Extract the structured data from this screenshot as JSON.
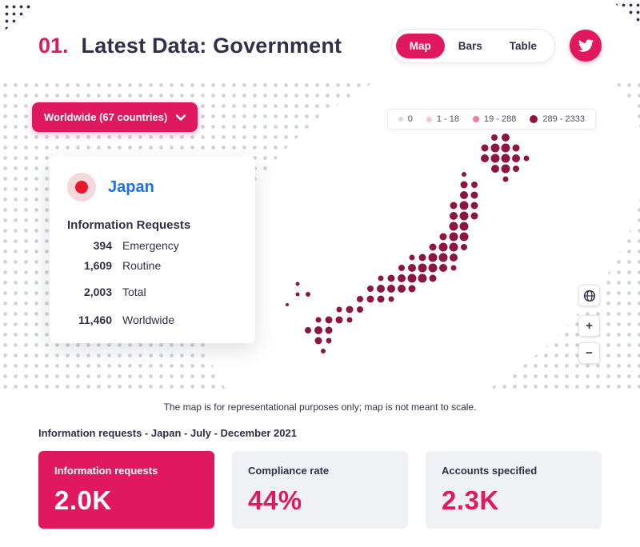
{
  "header": {
    "number": "01.",
    "title": "Latest Data: Government",
    "tabs": [
      {
        "label": "Map",
        "active": true
      },
      {
        "label": "Bars",
        "active": false
      },
      {
        "label": "Table",
        "active": false
      }
    ]
  },
  "map": {
    "dropdown_label": "Worldwide (67 countries)",
    "legend": [
      {
        "label": "0",
        "color": "#d6dade"
      },
      {
        "label": "1 - 18",
        "color": "#f6c4d2"
      },
      {
        "label": "19 - 288",
        "color": "#ee7ca0"
      },
      {
        "label": "289 - 2333",
        "color": "#8c1641"
      }
    ],
    "tooltip": {
      "country": "Japan",
      "section_title": "Information Requests",
      "rows": [
        {
          "value": "394",
          "label": "Emergency"
        },
        {
          "value": "1,609",
          "label": "Routine"
        },
        {
          "value": "2,003",
          "label": "Total"
        },
        {
          "value": "11,460",
          "label": "Worldwide"
        }
      ]
    },
    "controls": {
      "zoom_in": "+",
      "zoom_out": "−"
    },
    "disclaimer": "The map is for representational purposes only; map is not meant to scale.",
    "japan_dots": [
      [
        618,
        72,
        4
      ],
      [
        632,
        72,
        5
      ],
      [
        606,
        85,
        4.5
      ],
      [
        619,
        85,
        5.5
      ],
      [
        632,
        85,
        5.5
      ],
      [
        645,
        85,
        4.5
      ],
      [
        606,
        98,
        5
      ],
      [
        619,
        98,
        5.5
      ],
      [
        632,
        98,
        5.5
      ],
      [
        645,
        98,
        5
      ],
      [
        658,
        98,
        3.5
      ],
      [
        619,
        111,
        5
      ],
      [
        632,
        111,
        5.5
      ],
      [
        645,
        111,
        4
      ],
      [
        632,
        124,
        3.5
      ],
      [
        580,
        118,
        3
      ],
      [
        580,
        131,
        4.5
      ],
      [
        593,
        131,
        4
      ],
      [
        580,
        144,
        5
      ],
      [
        593,
        144,
        4.5
      ],
      [
        567,
        157,
        4.5
      ],
      [
        580,
        157,
        5.5
      ],
      [
        593,
        157,
        4.5
      ],
      [
        567,
        170,
        5
      ],
      [
        580,
        170,
        5.5
      ],
      [
        593,
        170,
        4.5
      ],
      [
        567,
        183,
        5.5
      ],
      [
        580,
        183,
        5.5
      ],
      [
        554,
        196,
        4.5
      ],
      [
        567,
        196,
        5.5
      ],
      [
        580,
        196,
        5.5
      ],
      [
        541,
        209,
        4.5
      ],
      [
        554,
        209,
        5.5
      ],
      [
        567,
        209,
        5.5
      ],
      [
        580,
        209,
        4
      ],
      [
        515,
        222,
        3.5
      ],
      [
        528,
        222,
        4.5
      ],
      [
        541,
        222,
        5.5
      ],
      [
        554,
        222,
        5.5
      ],
      [
        567,
        222,
        5
      ],
      [
        502,
        235,
        4
      ],
      [
        515,
        235,
        5
      ],
      [
        528,
        235,
        5.5
      ],
      [
        541,
        235,
        5.5
      ],
      [
        554,
        235,
        5
      ],
      [
        567,
        235,
        3.5
      ],
      [
        476,
        248,
        3.5
      ],
      [
        489,
        248,
        4.5
      ],
      [
        502,
        248,
        5
      ],
      [
        515,
        248,
        5.5
      ],
      [
        528,
        248,
        5.5
      ],
      [
        541,
        248,
        4.5
      ],
      [
        463,
        261,
        4
      ],
      [
        476,
        261,
        5
      ],
      [
        489,
        261,
        5
      ],
      [
        502,
        261,
        5
      ],
      [
        515,
        261,
        4.5
      ],
      [
        450,
        274,
        4
      ],
      [
        463,
        274,
        4.5
      ],
      [
        476,
        274,
        4.5
      ],
      [
        489,
        274,
        3.5
      ],
      [
        424,
        287,
        3.5
      ],
      [
        437,
        287,
        4.5
      ],
      [
        450,
        287,
        4
      ],
      [
        398,
        300,
        3.5
      ],
      [
        411,
        300,
        4.5
      ],
      [
        424,
        300,
        4.5
      ],
      [
        437,
        300,
        3.5
      ],
      [
        385,
        313,
        4
      ],
      [
        398,
        313,
        5
      ],
      [
        411,
        313,
        4.5
      ],
      [
        398,
        326,
        4.5
      ],
      [
        411,
        326,
        3.5
      ],
      [
        404,
        339,
        3
      ],
      [
        372,
        255,
        2.5
      ],
      [
        372,
        268,
        2.5
      ],
      [
        385,
        268,
        3
      ],
      [
        359,
        281,
        2
      ]
    ]
  },
  "caption": "Information requests - Japan - July - December 2021",
  "stats": [
    {
      "label": "Information requests",
      "value": "2.0K"
    },
    {
      "label": "Compliance rate",
      "value": "44%"
    },
    {
      "label": "Accounts specified",
      "value": "2.3K"
    }
  ],
  "icons": {
    "twitter": "twitter-bird",
    "chevron": "chevron-down",
    "globe": "globe"
  },
  "colors": {
    "accent_pink": "#e0195f",
    "japan_dot": "#8c1641",
    "title_navy": "#2e3147",
    "japan_blue": "#1a73e8",
    "card_gray": "#f0f1f4"
  }
}
